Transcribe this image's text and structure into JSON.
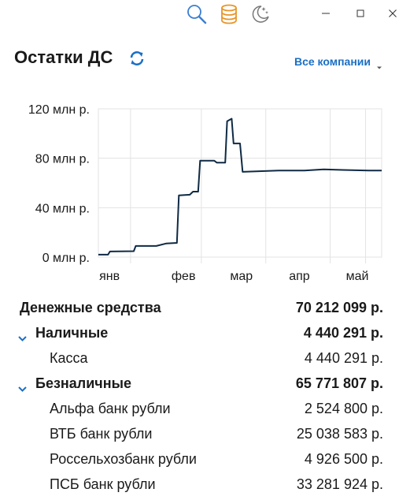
{
  "header": {
    "title": "Остатки ДС",
    "company_selector": "Все компании"
  },
  "colors": {
    "line": "#0f2a44",
    "accent": "#1a6fc4",
    "toolbar_orange": "#e8962a",
    "grid": "#e3e3e3"
  },
  "icons": [
    "search-icon",
    "database-icon",
    "night-mode-icon",
    "minimize-icon",
    "maximize-icon",
    "close-icon",
    "refresh-icon",
    "chevron-down-icon"
  ],
  "chart_data": {
    "type": "line",
    "x_tick_labels": [
      "янв",
      "фев",
      "мар",
      "апр",
      "май"
    ],
    "y_tick_labels": [
      "0 млн р.",
      "40 млн р.",
      "80 млн р.",
      "120 млн р."
    ],
    "ylim": [
      0,
      120
    ],
    "grid": true,
    "series": [
      {
        "values": [
          {
            "x": 0.0,
            "y": 2
          },
          {
            "x": 0.15,
            "y": 2
          },
          {
            "x": 0.18,
            "y": 4.5
          },
          {
            "x": 0.55,
            "y": 4.8
          },
          {
            "x": 0.58,
            "y": 9
          },
          {
            "x": 0.9,
            "y": 9
          },
          {
            "x": 1.05,
            "y": 11
          },
          {
            "x": 1.22,
            "y": 11.5
          },
          {
            "x": 1.25,
            "y": 50
          },
          {
            "x": 1.42,
            "y": 50.5
          },
          {
            "x": 1.47,
            "y": 53
          },
          {
            "x": 1.55,
            "y": 53
          },
          {
            "x": 1.58,
            "y": 78
          },
          {
            "x": 1.8,
            "y": 78
          },
          {
            "x": 1.84,
            "y": 76.5
          },
          {
            "x": 1.97,
            "y": 76.5
          },
          {
            "x": 2.0,
            "y": 110
          },
          {
            "x": 2.07,
            "y": 112
          },
          {
            "x": 2.1,
            "y": 92
          },
          {
            "x": 2.2,
            "y": 92
          },
          {
            "x": 2.24,
            "y": 69
          },
          {
            "x": 2.5,
            "y": 69.5
          },
          {
            "x": 2.8,
            "y": 70
          },
          {
            "x": 3.2,
            "y": 70
          },
          {
            "x": 3.5,
            "y": 71
          },
          {
            "x": 3.8,
            "y": 70.5
          },
          {
            "x": 4.2,
            "y": 70
          },
          {
            "x": 4.4,
            "y": 70
          }
        ]
      }
    ]
  },
  "summary": {
    "total_label": "Денежные средства",
    "total_value": "70 212 099 р.",
    "groups": [
      {
        "label": "Наличные",
        "value": "4 440 291 р.",
        "items": [
          {
            "label": "Касса",
            "value": "4 440 291 р."
          }
        ]
      },
      {
        "label": "Безналичные",
        "value": "65 771 807 р.",
        "items": [
          {
            "label": "Альфа банк рубли",
            "value": "2 524 800 р."
          },
          {
            "label": "ВТБ банк рубли",
            "value": "25 038 583 р."
          },
          {
            "label": "Россельхозбанк рубли",
            "value": "4 926 500 р."
          },
          {
            "label": "ПСБ банк рубли",
            "value": "33 281 924 р."
          }
        ]
      }
    ]
  }
}
